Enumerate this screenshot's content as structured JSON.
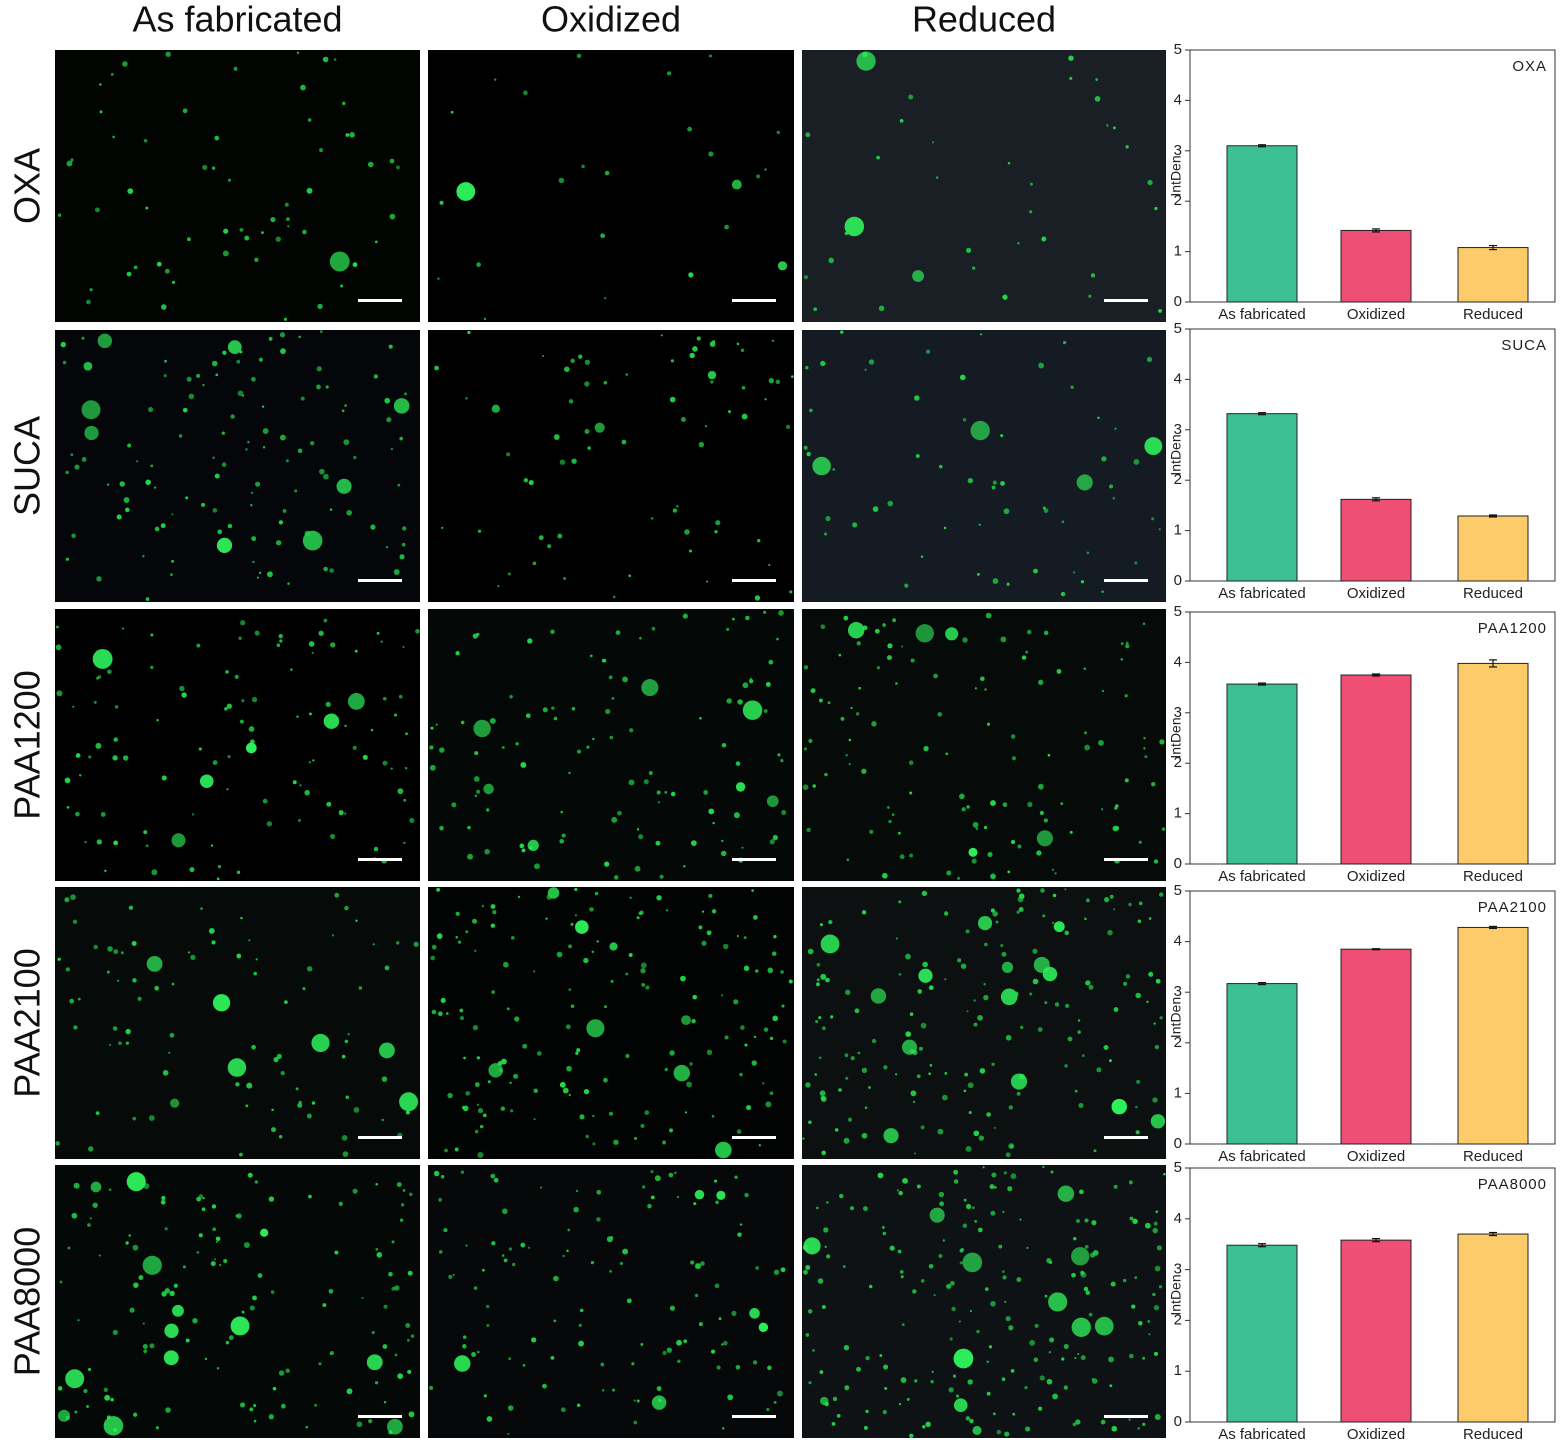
{
  "columns": [
    "As fabricated",
    "Oxidized",
    "Reduced"
  ],
  "rows": [
    "OXA",
    "SUCA",
    "PAA1200",
    "PAA2100",
    "PAA8000"
  ],
  "chart_data": [
    {
      "type": "bar",
      "title": "OXA",
      "y_label": "IntDen",
      "categories": [
        "As fabricated",
        "Oxidized",
        "Reduced"
      ],
      "values": [
        3.1,
        1.42,
        1.08
      ],
      "errors": [
        0.02,
        0.03,
        0.04
      ],
      "colors": [
        "#3dbf94",
        "#ef4f74",
        "#fdcb6a"
      ],
      "ylim": [
        0,
        5
      ],
      "yticks": [
        0,
        1,
        2,
        3,
        4,
        5
      ]
    },
    {
      "type": "bar",
      "title": "SUCA",
      "y_label": "IntDen",
      "categories": [
        "As fabricated",
        "Oxidized",
        "Reduced"
      ],
      "values": [
        3.32,
        1.62,
        1.29
      ],
      "errors": [
        0.02,
        0.03,
        0.02
      ],
      "colors": [
        "#3dbf94",
        "#ef4f74",
        "#fdcb6a"
      ],
      "ylim": [
        0,
        5
      ],
      "yticks": [
        0,
        1,
        2,
        3,
        4,
        5
      ]
    },
    {
      "type": "bar",
      "title": "PAA1200",
      "y_label": "IntDen",
      "categories": [
        "As fabricated",
        "Oxidized",
        "Reduced"
      ],
      "values": [
        3.57,
        3.75,
        3.98
      ],
      "errors": [
        0.02,
        0.02,
        0.07
      ],
      "colors": [
        "#3dbf94",
        "#ef4f74",
        "#fdcb6a"
      ],
      "ylim": [
        0,
        5
      ],
      "yticks": [
        0,
        1,
        2,
        3,
        4,
        5
      ]
    },
    {
      "type": "bar",
      "title": "PAA2100",
      "y_label": "IntDen",
      "categories": [
        "As fabricated",
        "Oxidized",
        "Reduced"
      ],
      "values": [
        3.17,
        3.85,
        4.28
      ],
      "errors": [
        0.02,
        0.01,
        0.02
      ],
      "colors": [
        "#3dbf94",
        "#ef4f74",
        "#fdcb6a"
      ],
      "ylim": [
        0,
        5
      ],
      "yticks": [
        0,
        1,
        2,
        3,
        4,
        5
      ]
    },
    {
      "type": "bar",
      "title": "PAA8000",
      "y_label": "IntDen",
      "categories": [
        "As fabricated",
        "Oxidized",
        "Reduced"
      ],
      "values": [
        3.48,
        3.58,
        3.7
      ],
      "errors": [
        0.03,
        0.03,
        0.03
      ],
      "colors": [
        "#3dbf94",
        "#ef4f74",
        "#fdcb6a"
      ],
      "ylim": [
        0,
        5
      ],
      "yticks": [
        0,
        1,
        2,
        3,
        4,
        5
      ]
    }
  ]
}
